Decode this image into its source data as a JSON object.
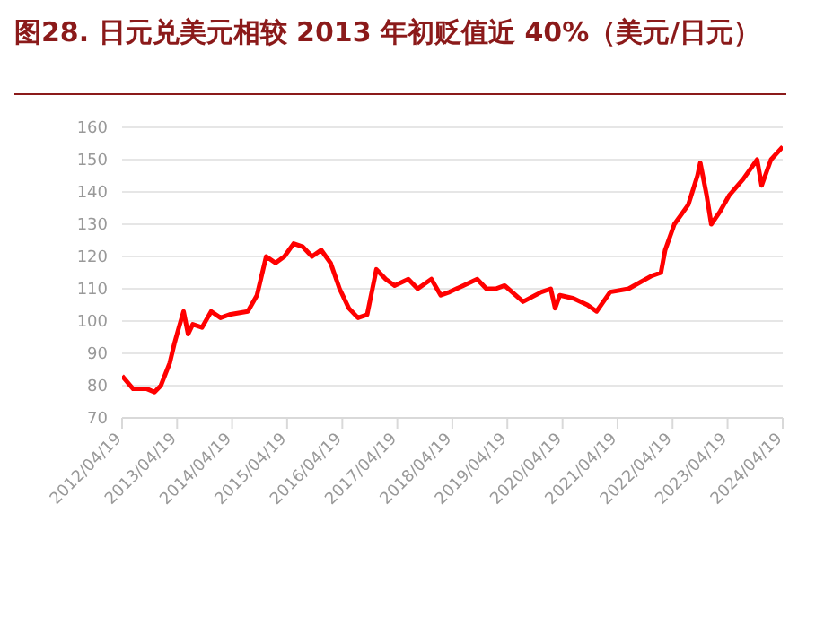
{
  "chart_data": {
    "type": "line",
    "title": "图28. 日元兑美元相较 2013 年初贬值近 40%（美元/日元）",
    "x": [
      "2012-04-19",
      "2012-07",
      "2012-10",
      "2012-11-20",
      "2013-01",
      "2013-03",
      "2013-04",
      "2013-05",
      "2013-06",
      "2013-07",
      "2013-08",
      "2013-10",
      "2013-12",
      "2014-02",
      "2014-04",
      "2014-08",
      "2014-10",
      "2014-12",
      "2015-02",
      "2015-04",
      "2015-06",
      "2015-08",
      "2015-10",
      "2015-12",
      "2016-02",
      "2016-04",
      "2016-06",
      "2016-08",
      "2016-10",
      "2016-12",
      "2017-02",
      "2017-04",
      "2017-07",
      "2017-09",
      "2017-12",
      "2018-02",
      "2018-04",
      "2018-07",
      "2018-10",
      "2018-12",
      "2019-02",
      "2019-04",
      "2019-08",
      "2019-12",
      "2020-02",
      "2020-03",
      "2020-04",
      "2020-07",
      "2020-10",
      "2020-12",
      "2021-03",
      "2021-07",
      "2021-12",
      "2022-02",
      "2022-03",
      "2022-05",
      "2022-08",
      "2022-10",
      "2022-10-20",
      "2022-12",
      "2023-01",
      "2023-03",
      "2023-05",
      "2023-08",
      "2023-11",
      "2023-12",
      "2024-02",
      "2024-04-19"
    ],
    "series": [
      {
        "color": "#ff0000",
        "values": [
          83,
          79,
          79,
          78,
          80,
          87,
          93,
          98,
          103,
          96,
          99,
          98,
          103,
          101,
          102,
          103,
          108,
          120,
          118,
          120,
          124,
          123,
          120,
          122,
          118,
          110,
          104,
          101,
          102,
          116,
          113,
          111,
          113,
          110,
          113,
          108,
          109,
          111,
          113,
          110,
          110,
          111,
          106,
          109,
          110,
          104,
          108,
          107,
          105,
          103,
          109,
          110,
          114,
          115,
          122,
          130,
          136,
          145,
          149,
          139,
          130,
          134,
          139,
          144,
          150,
          142,
          150,
          154
        ]
      }
    ],
    "xlim": [
      "2012-04-19",
      "2024-04-19"
    ],
    "xticks": [
      {
        "value": "2012-04-19",
        "label": "2012/04/19"
      },
      {
        "value": "2013-04-19",
        "label": "2013/04/19"
      },
      {
        "value": "2014-04-19",
        "label": "2014/04/19"
      },
      {
        "value": "2015-04-19",
        "label": "2015/04/19"
      },
      {
        "value": "2016-04-19",
        "label": "2016/04/19"
      },
      {
        "value": "2017-04-19",
        "label": "2017/04/19"
      },
      {
        "value": "2018-04-19",
        "label": "2018/04/19"
      },
      {
        "value": "2019-04-19",
        "label": "2019/04/19"
      },
      {
        "value": "2020-04-19",
        "label": "2020/04/19"
      },
      {
        "value": "2021-04-19",
        "label": "2021/04/19"
      },
      {
        "value": "2022-04-19",
        "label": "2022/04/19"
      },
      {
        "value": "2023-04-19",
        "label": "2023/04/19"
      },
      {
        "value": "2024-04-19",
        "label": "2024/04/19"
      }
    ],
    "ylim": [
      70,
      160
    ],
    "yticks": [
      70,
      80,
      90,
      100,
      110,
      120,
      130,
      140,
      150,
      160
    ],
    "grid": "y",
    "marker": "none",
    "line_style": "solid"
  }
}
